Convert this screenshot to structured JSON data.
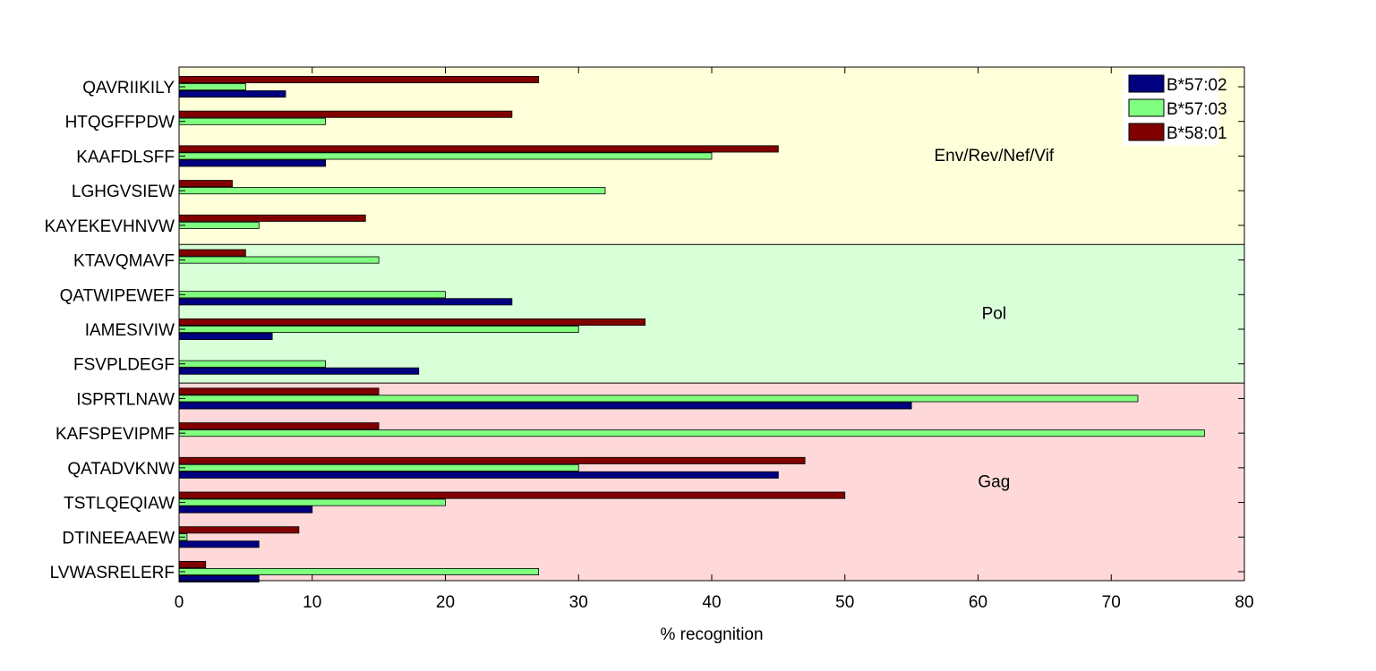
{
  "chart_data": {
    "type": "bar",
    "orientation": "horizontal",
    "categories": [
      "QAVRIIKILY",
      "HTQGFFPDW",
      "KAAFDLSFF",
      "LGHGVSIEW",
      "KAYEKEVHNVW",
      "KTAVQMAVF",
      "QATWIPEWEF",
      "IAMESIVIW",
      "FSVPLDEGF",
      "ISPRTLNAW",
      "KAFSPEVIPMF",
      "QATADVKNW",
      "TSTLQEQIAW",
      "DTINEEAAEW",
      "LVWASRELERF"
    ],
    "series": [
      {
        "name": "B*57:02",
        "color": "#000080",
        "values": [
          8,
          0,
          11,
          0,
          0,
          0,
          25,
          7,
          18,
          55,
          0,
          45,
          10,
          6,
          6
        ]
      },
      {
        "name": "B*57:03",
        "color": "#80ff80",
        "values": [
          5,
          11,
          40,
          32,
          6,
          15,
          20,
          30,
          11,
          72,
          77,
          30,
          20,
          0.6,
          27
        ]
      },
      {
        "name": "B*58:01",
        "color": "#800000",
        "values": [
          27,
          25,
          45,
          4,
          14,
          5,
          0,
          35,
          0,
          15,
          15,
          47,
          50,
          9,
          2
        ]
      }
    ],
    "groups": [
      {
        "label": "Env/Rev/Nef/Vif",
        "color": "#ffffd9",
        "categories": [
          "QAVRIIKILY",
          "HTQGFFPDW",
          "KAAFDLSFF",
          "LGHGVSIEW",
          "KAYEKEVHNVW"
        ]
      },
      {
        "label": "Pol",
        "color": "#d9ffd9",
        "categories": [
          "KTAVQMAVF",
          "QATWIPEWEF",
          "IAMESIVIW",
          "FSVPLDEGF"
        ]
      },
      {
        "label": "Gag",
        "color": "#ffd9d9",
        "categories": [
          "ISPRTLNAW",
          "KAFSPEVIPMF",
          "QATADVKNW",
          "TSTLQEQIAW",
          "DTINEEAAEW",
          "LVWASRELERF"
        ]
      }
    ],
    "xlabel": "% recognition",
    "ylabel": "",
    "title": "",
    "xlim": [
      0,
      80
    ],
    "xticks": [
      0,
      10,
      20,
      30,
      40,
      50,
      60,
      70,
      80
    ],
    "grid": false,
    "legend_position": "top-right"
  }
}
